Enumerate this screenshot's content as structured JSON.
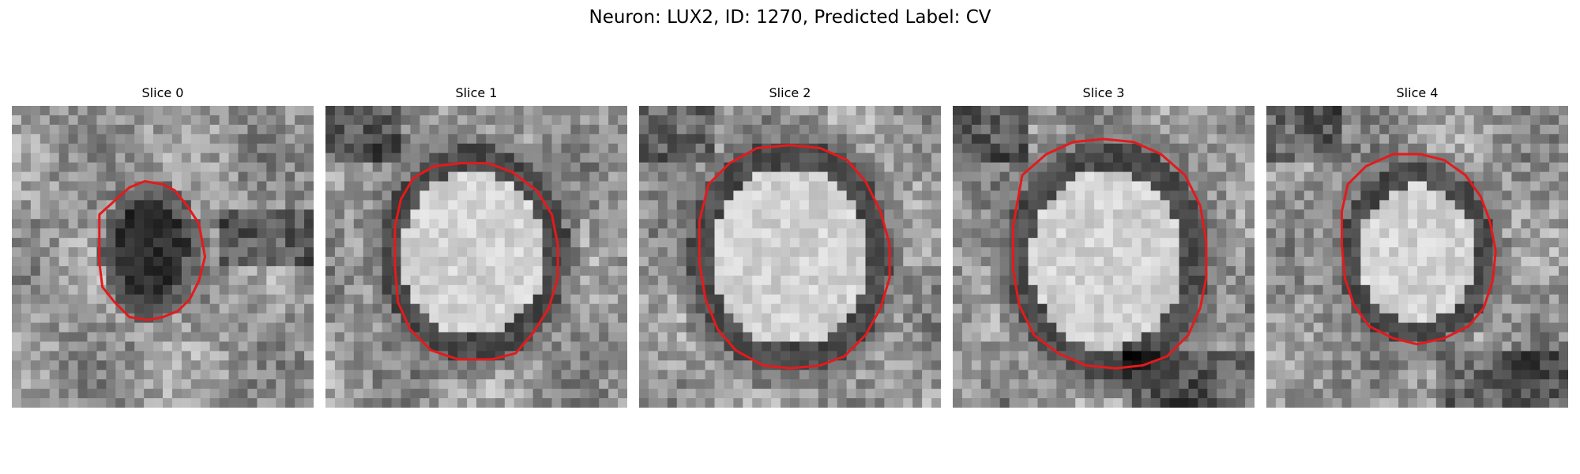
{
  "figure": {
    "title": "Neuron: LUX2, ID: 1270, Predicted Label: CV",
    "outline_color": "#e41a1c",
    "colormap": "grayscale",
    "panels": [
      {
        "title": "Slice 0"
      },
      {
        "title": "Slice 1"
      },
      {
        "title": "Slice 2"
      },
      {
        "title": "Slice 3"
      },
      {
        "title": "Slice 4"
      }
    ]
  }
}
